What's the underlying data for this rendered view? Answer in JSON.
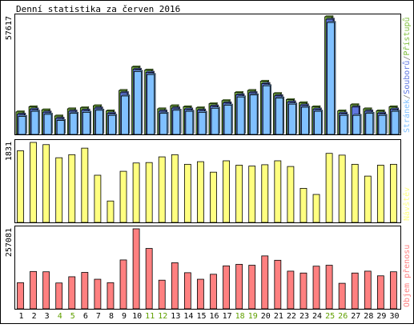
{
  "title": "Denní statistika za červen 2016",
  "chart_data": [
    {
      "type": "bar",
      "categories": [
        "1",
        "2",
        "3",
        "4",
        "5",
        "6",
        "7",
        "8",
        "9",
        "10",
        "11",
        "12",
        "13",
        "14",
        "15",
        "16",
        "17",
        "18",
        "19",
        "20",
        "21",
        "22",
        "23",
        "24",
        "25",
        "26",
        "27",
        "28",
        "29",
        "30"
      ],
      "weekend_days": [
        "4",
        "5",
        "11",
        "12",
        "18",
        "19",
        "25",
        "26"
      ],
      "ymax_label": "57617",
      "ylabel": "Stránek/Souborů/Přístupů",
      "ylabel_parts": [
        {
          "text": "Stránek",
          "color": "#80c0ff"
        },
        {
          "text": "/",
          "color": "#808080"
        },
        {
          "text": "Souborů",
          "color": "#6078e0"
        },
        {
          "text": "/",
          "color": "#808080"
        },
        {
          "text": "Přístupů",
          "color": "#80c040"
        }
      ],
      "ylim": [
        0,
        57617
      ],
      "series": [
        {
          "name": "Přístupů",
          "color": "#80c040",
          "values": [
            11000,
            13500,
            12000,
            9000,
            12500,
            13000,
            14000,
            11500,
            21500,
            33000,
            31500,
            12500,
            14000,
            13500,
            13000,
            15000,
            16500,
            20500,
            21500,
            26000,
            20000,
            17000,
            15500,
            13500,
            57617,
            11500,
            14500,
            12500,
            11500,
            13500
          ]
        },
        {
          "name": "Souborů",
          "color": "#6078e0",
          "values": [
            10500,
            13000,
            11500,
            8500,
            12000,
            12500,
            13500,
            11000,
            21000,
            32500,
            31000,
            12000,
            13500,
            13000,
            12500,
            14500,
            16000,
            20000,
            21000,
            25500,
            19500,
            16500,
            15000,
            13000,
            57000,
            11000,
            14000,
            12000,
            11000,
            13000
          ]
        },
        {
          "name": "Stránek",
          "color": "#80c0ff",
          "values": [
            10000,
            12500,
            11000,
            8000,
            11500,
            12000,
            13000,
            10500,
            20000,
            32000,
            30500,
            11500,
            13000,
            12500,
            12000,
            14000,
            15500,
            19500,
            20500,
            25000,
            19000,
            16000,
            14500,
            12500,
            56000,
            10500,
            10500,
            11500,
            10500,
            12500
          ]
        }
      ],
      "colors": {
        "Přístupů": "#80c040",
        "Souborů": "#6078e0",
        "Stránek": "#80c0ff"
      }
    },
    {
      "type": "bar",
      "categories": [
        "1",
        "2",
        "3",
        "4",
        "5",
        "6",
        "7",
        "8",
        "9",
        "10",
        "11",
        "12",
        "13",
        "14",
        "15",
        "16",
        "17",
        "18",
        "19",
        "20",
        "21",
        "22",
        "23",
        "24",
        "25",
        "26",
        "27",
        "28",
        "29",
        "30"
      ],
      "ymax_label": "1831",
      "ylabel": "Návštěv",
      "ylim": [
        0,
        1831
      ],
      "series": [
        {
          "name": "Návštěv",
          "color": "#ffff80",
          "values": [
            1640,
            1831,
            1780,
            1480,
            1550,
            1700,
            1080,
            490,
            1170,
            1360,
            1370,
            1500,
            1550,
            1330,
            1390,
            1150,
            1410,
            1310,
            1290,
            1320,
            1410,
            1280,
            780,
            640,
            1580,
            1540,
            1330,
            1060,
            1310,
            1330
          ]
        }
      ]
    },
    {
      "type": "bar",
      "categories": [
        "1",
        "2",
        "3",
        "4",
        "5",
        "6",
        "7",
        "8",
        "9",
        "10",
        "11",
        "12",
        "13",
        "14",
        "15",
        "16",
        "17",
        "18",
        "19",
        "20",
        "21",
        "22",
        "23",
        "24",
        "25",
        "26",
        "27",
        "28",
        "29",
        "30"
      ],
      "ymax_label": "257081",
      "ylabel": "Objem přenosu",
      "ylim": [
        0,
        257081
      ],
      "series": [
        {
          "name": "Objem přenosu",
          "color": "#ff8080",
          "values": [
            84000,
            120000,
            119000,
            83000,
            103000,
            117000,
            95000,
            84000,
            157000,
            257081,
            194000,
            92000,
            148000,
            116000,
            95000,
            111000,
            138000,
            143000,
            140000,
            170000,
            156000,
            121000,
            115000,
            137000,
            140000,
            82000,
            115000,
            121000,
            106000,
            119000
          ]
        }
      ]
    }
  ]
}
